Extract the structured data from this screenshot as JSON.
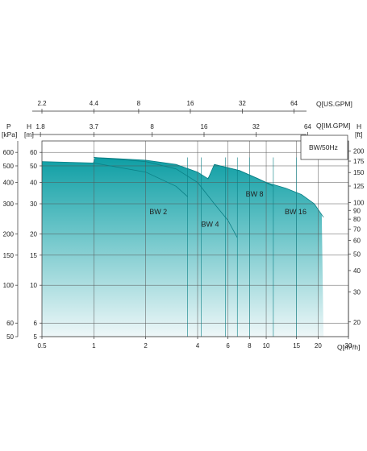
{
  "chart_data": {
    "type": "area",
    "title": "",
    "legend_box": "BW/50Hz",
    "x_scale": "log",
    "xlabel": "Q[m³/h]",
    "xlim": [
      0.5,
      30
    ],
    "x_ticks": [
      "0.5",
      "1",
      "2",
      "4",
      "6",
      "8",
      "10",
      "15",
      "20",
      "30"
    ],
    "x_tick_values": [
      0.5,
      1,
      2,
      4,
      6,
      8,
      10,
      15,
      20,
      30
    ],
    "top_axis_us": {
      "label": "Q[US.GPM]",
      "ticks": [
        "2.2",
        "4.4",
        "8",
        "16",
        "32",
        "64"
      ],
      "at_m3h": [
        0.5,
        1,
        1.82,
        3.63,
        7.27,
        14.5
      ]
    },
    "top_axis_im": {
      "label": "Q[IM.GPM]",
      "ticks": [
        "1.8",
        "3.7",
        "8",
        "16",
        "32",
        "64"
      ],
      "at_m3h": [
        0.49,
        1.0,
        2.18,
        4.36,
        8.73,
        17.4
      ]
    },
    "y_scale": "log",
    "ylabel": "[m]",
    "ylabel_head": "H",
    "ylim": [
      5,
      70
    ],
    "y_ticks": [
      "5",
      "6",
      "10",
      "15",
      "20",
      "30",
      "40",
      "50",
      "60"
    ],
    "y_tick_values": [
      5,
      6,
      10,
      15,
      20,
      30,
      40,
      50,
      60
    ],
    "left_kpa_axis": {
      "label_top": "P",
      "label": "[kPa]",
      "ticks": [
        "50",
        "60",
        "100",
        "150",
        "200",
        "300",
        "400",
        "500",
        "600"
      ]
    },
    "right_ft_axis": {
      "label_top": "H",
      "label": "[ft]",
      "ticks": [
        "20",
        "30",
        "40",
        "50",
        "60",
        "70",
        "80",
        "90",
        "100",
        "125",
        "150",
        "175",
        "200"
      ],
      "tick_values": [
        20,
        30,
        40,
        50,
        60,
        70,
        80,
        90,
        100,
        125,
        150,
        175,
        200
      ]
    },
    "series": [
      {
        "name": "BW 2",
        "q_min": 0.5,
        "q_max": 3.5,
        "h_max": 53,
        "curve": [
          [
            0.5,
            53
          ],
          [
            1,
            52
          ],
          [
            2,
            46
          ],
          [
            3,
            38
          ],
          [
            3.5,
            33
          ]
        ],
        "label_at": [
          2.1,
          26
        ]
      },
      {
        "name": "BW 4",
        "q_min": 1.0,
        "q_max": 6.8,
        "h_max": 56,
        "curve": [
          [
            1,
            56
          ],
          [
            2,
            53
          ],
          [
            3,
            48
          ],
          [
            4,
            40
          ],
          [
            5,
            30
          ],
          [
            6,
            24
          ],
          [
            6.8,
            19
          ]
        ],
        "label_at": [
          4.2,
          22
        ]
      },
      {
        "name": "BW 8",
        "q_min": 1.0,
        "q_max": 11,
        "h_max": 56,
        "curve": [
          [
            1,
            56
          ],
          [
            2,
            54
          ],
          [
            3,
            51
          ],
          [
            4,
            46
          ],
          [
            4.6,
            42
          ],
          [
            5,
            51
          ],
          [
            7,
            47
          ],
          [
            9,
            42
          ],
          [
            11,
            38
          ]
        ],
        "label_at": [
          7.6,
          33
        ]
      },
      {
        "name": "BW 16",
        "q_min": 5.0,
        "q_max": 21.5,
        "h_max": 51,
        "curve": [
          [
            5,
            51
          ],
          [
            7,
            47
          ],
          [
            10,
            40
          ],
          [
            13,
            37
          ],
          [
            16,
            34
          ],
          [
            19,
            30
          ],
          [
            21.5,
            25
          ]
        ],
        "label_at": [
          12.8,
          26
        ]
      }
    ],
    "series_divider_q": [
      3.5,
      4.2,
      5.8,
      6.8,
      8.0,
      11,
      15
    ],
    "colors": {
      "fill_top": "#0e9ea4",
      "fill_bottom": "#eef7f8",
      "axis": "#333333",
      "grid": "#555555"
    },
    "grid": true
  }
}
